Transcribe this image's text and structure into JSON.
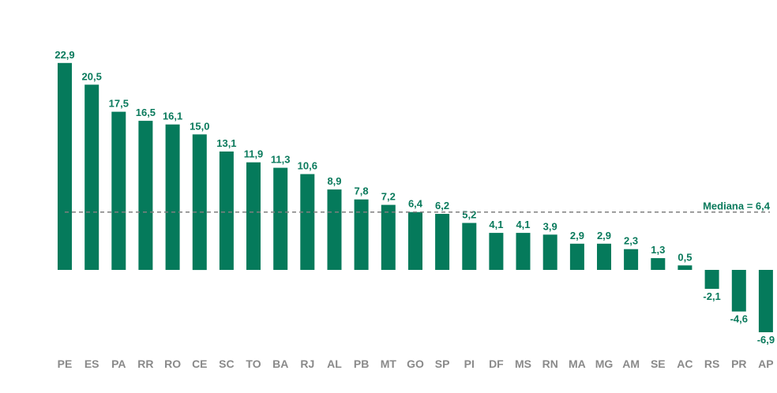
{
  "chart_data": {
    "type": "bar",
    "categories": [
      "PE",
      "ES",
      "PA",
      "RR",
      "RO",
      "CE",
      "SC",
      "TO",
      "BA",
      "RJ",
      "AL",
      "PB",
      "MT",
      "GO",
      "SP",
      "PI",
      "DF",
      "MS",
      "RN",
      "MA",
      "MG",
      "AM",
      "SE",
      "AC",
      "RS",
      "PR",
      "AP"
    ],
    "values": [
      22.9,
      20.5,
      17.5,
      16.5,
      16.1,
      15.0,
      13.1,
      11.9,
      11.3,
      10.6,
      8.9,
      7.8,
      7.2,
      6.4,
      6.2,
      5.2,
      4.1,
      4.1,
      3.9,
      2.9,
      2.9,
      2.3,
      1.3,
      0.5,
      -2.1,
      -4.6,
      -6.9
    ],
    "value_labels": [
      "22,9",
      "20,5",
      "17,5",
      "16,5",
      "16,1",
      "15,0",
      "13,1",
      "11,9",
      "11,3",
      "10,6",
      "8,9",
      "7,8",
      "7,2",
      "6,4",
      "6,2",
      "5,2",
      "4,1",
      "4,1",
      "3,9",
      "2,9",
      "2,9",
      "2,3",
      "1,3",
      "0,5",
      "-2,1",
      "-4,6",
      "-6,9"
    ],
    "median": {
      "value": 6.4,
      "label": "Mediana = 6,4"
    },
    "ylim": [
      -6.9,
      22.9
    ],
    "grid": false,
    "bar_color": "#057a5b"
  }
}
